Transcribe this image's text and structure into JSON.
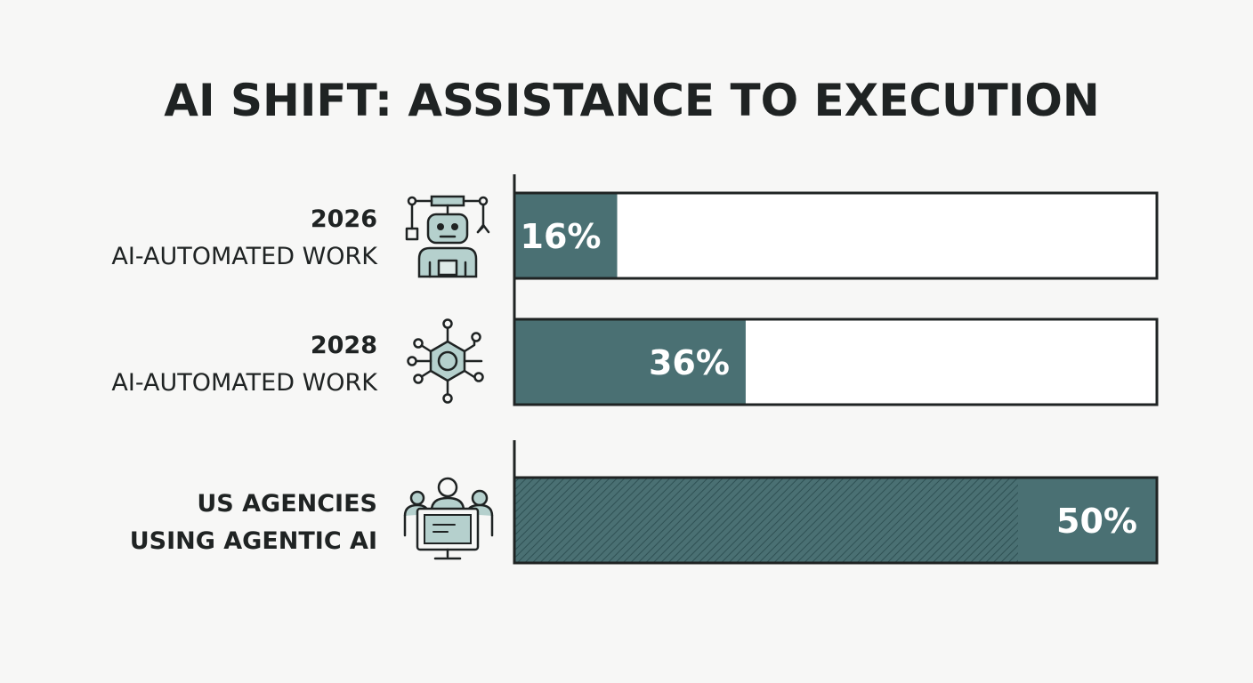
{
  "chart_data": {
    "type": "bar",
    "orientation": "horizontal",
    "title": "AI SHIFT: ASSISTANCE TO EXECUTION",
    "categories": [
      {
        "line1": "2026",
        "line2": "AI-AUTOMATED WORK",
        "line1_bold": true,
        "line2_bold": false,
        "icon": "robot-icon"
      },
      {
        "line1": "2028",
        "line2": "AI-AUTOMATED WORK",
        "line1_bold": true,
        "line2_bold": false,
        "icon": "network-chip-icon"
      },
      {
        "line1": "US AGENCIES",
        "line2": "USING AGENTIC AI",
        "line1_bold": true,
        "line2_bold": true,
        "icon": "agency-team-computer-icon"
      }
    ],
    "values": [
      16,
      36,
      50
    ],
    "value_labels": [
      "16%",
      "36%",
      "50%"
    ],
    "xlim": [
      0,
      100
    ],
    "unit": "%",
    "bar_fill_style": [
      "solid",
      "solid",
      "hatched"
    ],
    "grid": false,
    "legend": "none"
  },
  "colors": {
    "bar": "#4a7073",
    "bar_hatch": "#3f6467",
    "track": "#ffffff",
    "outline": "#1f2323",
    "icon_fill": "#b5d0cd",
    "background": "#f7f7f6"
  }
}
